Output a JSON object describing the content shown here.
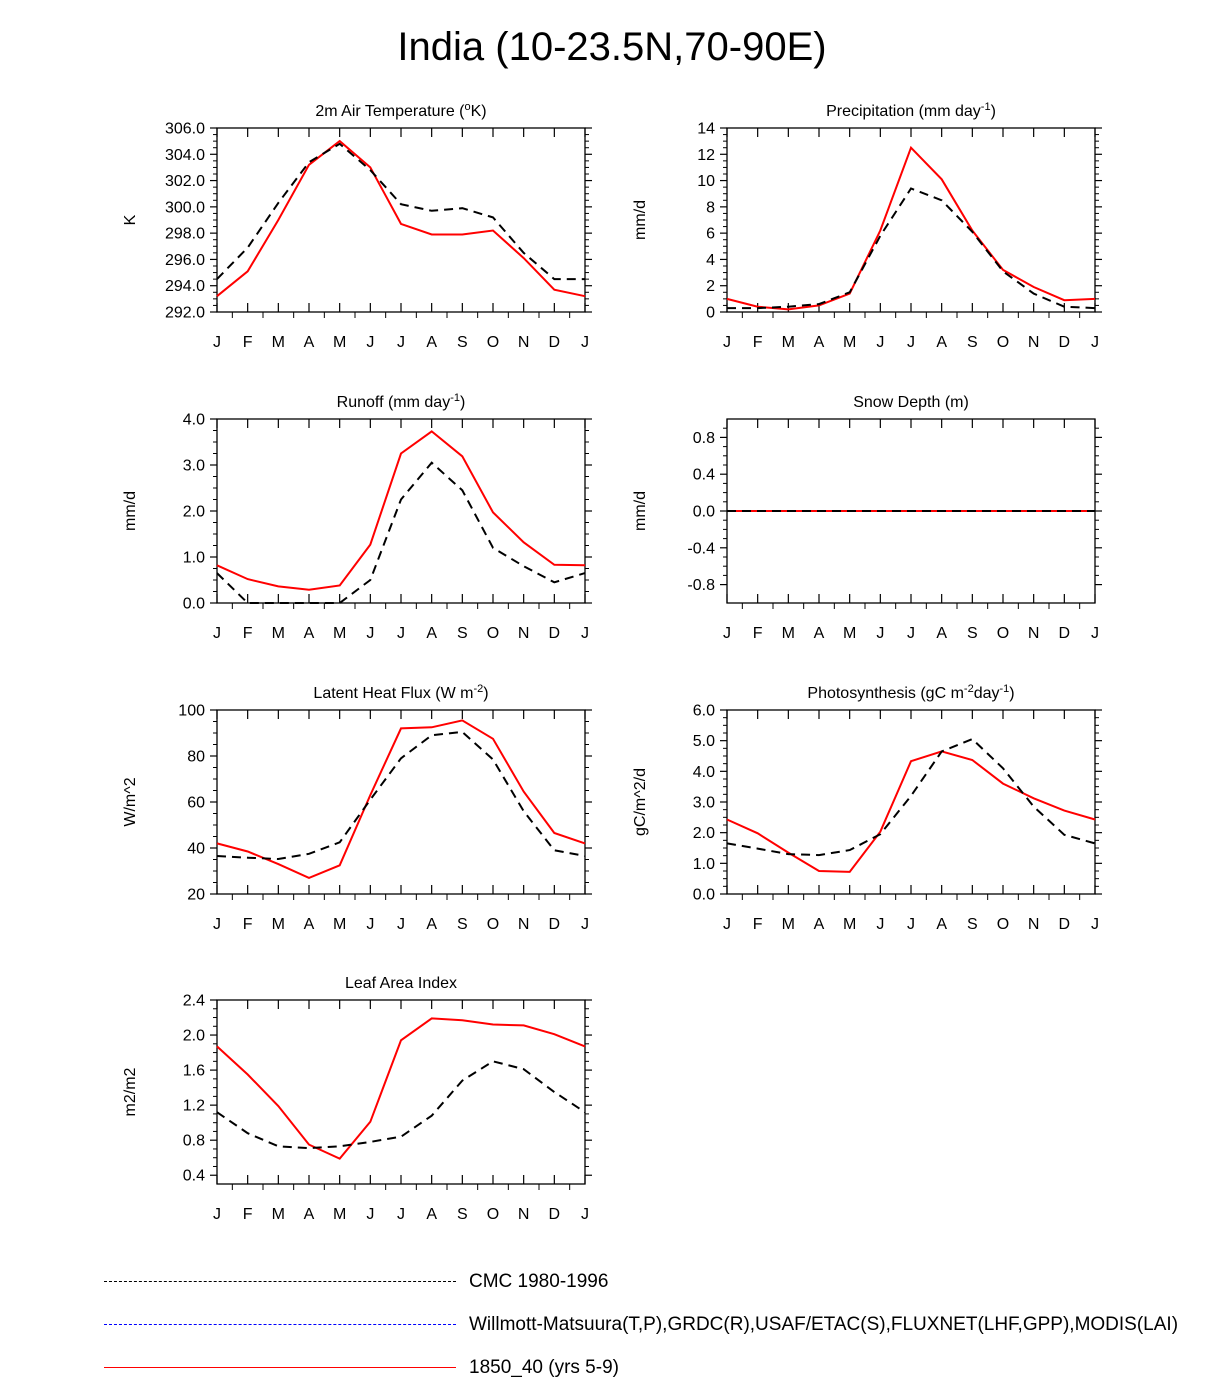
{
  "title": "India (10-23.5N,70-90E)",
  "legend": [
    {
      "label": "CMC 1980-1996",
      "color": "#000000",
      "style": "dashed"
    },
    {
      "label": "Willmott-Matsuura(T,P),GRDC(R),USAF/ETAC(S),FLUXNET(LHF,GPP),MODIS(LAI)",
      "color": "#0000ff",
      "style": "dashed"
    },
    {
      "label": "1850_40 (yrs 5-9)",
      "color": "#ff0000",
      "style": "solid"
    }
  ],
  "chart_data": [
    {
      "type": "line",
      "title": "2m Air Temperature (",
      "title_sup": "o",
      "title_tail": "K)",
      "ylabel": "K",
      "categories": [
        "J",
        "F",
        "M",
        "A",
        "M",
        "J",
        "J",
        "A",
        "S",
        "O",
        "N",
        "D",
        "J"
      ],
      "ylim": [
        292.0,
        306.0
      ],
      "yticks": [
        292.0,
        294.0,
        296.0,
        298.0,
        300.0,
        302.0,
        304.0,
        306.0
      ],
      "ytick_labels": [
        "292.0",
        "294.0",
        "296.0",
        "298.0",
        "300.0",
        "302.0",
        "304.0",
        "306.0"
      ],
      "series": [
        {
          "name": "CMC 1980-1996",
          "color": "#000000",
          "dashed": true,
          "values": [
            294.5,
            296.9,
            300.3,
            303.4,
            304.8,
            302.8,
            300.2,
            299.7,
            299.9,
            299.2,
            296.5,
            294.5,
            294.5
          ]
        },
        {
          "name": "1850_40 (yrs 5-9)",
          "color": "#ff0000",
          "dashed": false,
          "values": [
            293.2,
            295.1,
            299.0,
            303.2,
            305.0,
            303.0,
            298.7,
            297.9,
            297.9,
            298.2,
            296.1,
            293.7,
            293.2
          ]
        }
      ]
    },
    {
      "type": "line",
      "title": "Precipitation (mm day",
      "title_sup": "-1",
      "title_tail": ")",
      "ylabel": "mm/d",
      "categories": [
        "J",
        "F",
        "M",
        "A",
        "M",
        "J",
        "J",
        "A",
        "S",
        "O",
        "N",
        "D",
        "J"
      ],
      "ylim": [
        0,
        14
      ],
      "yticks": [
        0,
        2,
        4,
        6,
        8,
        10,
        12,
        14
      ],
      "ytick_labels": [
        "0",
        "2",
        "4",
        "6",
        "8",
        "10",
        "12",
        "14"
      ],
      "series": [
        {
          "name": "CMC 1980-1996",
          "color": "#000000",
          "dashed": true,
          "values": [
            0.3,
            0.3,
            0.4,
            0.6,
            1.5,
            5.8,
            9.4,
            8.5,
            6.1,
            3.1,
            1.4,
            0.4,
            0.3
          ]
        },
        {
          "name": "1850_40 (yrs 5-9)",
          "color": "#ff0000",
          "dashed": false,
          "values": [
            1.0,
            0.4,
            0.2,
            0.5,
            1.4,
            6.2,
            12.5,
            10.1,
            6.2,
            3.2,
            1.9,
            0.9,
            1.0
          ]
        }
      ]
    },
    {
      "type": "line",
      "title": "Runoff (mm day",
      "title_sup": "-1",
      "title_tail": ")",
      "ylabel": "mm/d",
      "categories": [
        "J",
        "F",
        "M",
        "A",
        "M",
        "J",
        "J",
        "A",
        "S",
        "O",
        "N",
        "D",
        "J"
      ],
      "ylim": [
        0,
        4
      ],
      "yticks": [
        0,
        1,
        2,
        3,
        4
      ],
      "ytick_labels": [
        "0.0",
        "1.0",
        "2.0",
        "3.0",
        "4.0"
      ],
      "series": [
        {
          "name": "CMC 1980-1996",
          "color": "#000000",
          "dashed": true,
          "values": [
            0.65,
            0.0,
            0.0,
            0.0,
            0.0,
            0.5,
            2.25,
            3.05,
            2.45,
            1.2,
            0.8,
            0.45,
            0.65
          ]
        },
        {
          "name": "1850_40 (yrs 5-9)",
          "color": "#ff0000",
          "dashed": false,
          "values": [
            0.82,
            0.52,
            0.36,
            0.29,
            0.38,
            1.27,
            3.25,
            3.73,
            3.19,
            1.97,
            1.32,
            0.83,
            0.82
          ]
        }
      ]
    },
    {
      "type": "line",
      "title": "Snow Depth (m)",
      "title_sup": "",
      "title_tail": "",
      "ylabel": "mm/d",
      "categories": [
        "J",
        "F",
        "M",
        "A",
        "M",
        "J",
        "J",
        "A",
        "S",
        "O",
        "N",
        "D",
        "J"
      ],
      "ylim": [
        -1.0,
        1.0
      ],
      "yticks": [
        -0.8,
        -0.4,
        0.0,
        0.4,
        0.8
      ],
      "ytick_labels": [
        "-0.8",
        "-0.4",
        "0.0",
        "0.4",
        "0.8"
      ],
      "series": [
        {
          "name": "CMC 1980-1996",
          "color": "#000000",
          "dashed": true,
          "values": [
            0,
            0,
            0,
            0,
            0,
            0,
            0,
            0,
            0,
            0,
            0,
            0,
            0
          ]
        },
        {
          "name": "1850_40 (yrs 5-9)",
          "color": "#ff0000",
          "dashed": false,
          "values": [
            0,
            0,
            0,
            0,
            0,
            0,
            0,
            0,
            0,
            0,
            0,
            0,
            0
          ]
        }
      ]
    },
    {
      "type": "line",
      "title": "Latent Heat Flux (W m",
      "title_sup": "-2",
      "title_tail": ")",
      "ylabel": "W/m^2",
      "categories": [
        "J",
        "F",
        "M",
        "A",
        "M",
        "J",
        "J",
        "A",
        "S",
        "O",
        "N",
        "D",
        "J"
      ],
      "ylim": [
        20,
        100
      ],
      "yticks": [
        20,
        40,
        60,
        80,
        100
      ],
      "ytick_labels": [
        "20",
        "40",
        "60",
        "80",
        "100"
      ],
      "series": [
        {
          "name": "CMC 1980-1996",
          "color": "#000000",
          "dashed": true,
          "values": [
            36.5,
            35.8,
            35.2,
            37.5,
            42.5,
            61.0,
            79.0,
            89.0,
            90.5,
            78.5,
            56.0,
            39.0,
            36.5
          ]
        },
        {
          "name": "1850_40 (yrs 5-9)",
          "color": "#ff0000",
          "dashed": false,
          "values": [
            42.0,
            38.5,
            33.0,
            27.0,
            32.5,
            63.0,
            92.0,
            92.5,
            95.5,
            87.5,
            64.5,
            46.5,
            42.0
          ]
        }
      ]
    },
    {
      "type": "line",
      "title": "Photosynthesis (gC m",
      "title_sup": "-2",
      "title_tail2": "day",
      "title_sup2": "-1",
      "title_tail": ")",
      "ylabel": "gC/m^2/d",
      "categories": [
        "J",
        "F",
        "M",
        "A",
        "M",
        "J",
        "J",
        "A",
        "S",
        "O",
        "N",
        "D",
        "J"
      ],
      "ylim": [
        0,
        6
      ],
      "yticks": [
        0,
        1,
        2,
        3,
        4,
        5,
        6
      ],
      "ytick_labels": [
        "0.0",
        "1.0",
        "2.0",
        "3.0",
        "4.0",
        "5.0",
        "6.0"
      ],
      "series": [
        {
          "name": "CMC 1980-1996",
          "color": "#000000",
          "dashed": true,
          "values": [
            1.65,
            1.48,
            1.3,
            1.27,
            1.43,
            1.95,
            3.2,
            4.65,
            5.05,
            4.1,
            2.85,
            1.93,
            1.65
          ]
        },
        {
          "name": "1850_40 (yrs 5-9)",
          "color": "#ff0000",
          "dashed": false,
          "values": [
            2.43,
            1.98,
            1.35,
            0.75,
            0.72,
            2.03,
            4.33,
            4.65,
            4.37,
            3.6,
            3.12,
            2.72,
            2.43
          ]
        }
      ]
    },
    {
      "type": "line",
      "title": "Leaf Area Index",
      "title_sup": "",
      "title_tail": "",
      "ylabel": "m2/m2",
      "categories": [
        "J",
        "F",
        "M",
        "A",
        "M",
        "J",
        "J",
        "A",
        "S",
        "O",
        "N",
        "D",
        "J"
      ],
      "ylim": [
        0.3,
        2.4
      ],
      "yticks": [
        0.4,
        0.8,
        1.2,
        1.6,
        2.0,
        2.4
      ],
      "ytick_labels": [
        "0.4",
        "0.8",
        "1.2",
        "1.6",
        "2.0",
        "2.4"
      ],
      "series": [
        {
          "name": "CMC 1980-1996",
          "color": "#000000",
          "dashed": true,
          "values": [
            1.12,
            0.88,
            0.73,
            0.71,
            0.73,
            0.78,
            0.84,
            1.08,
            1.48,
            1.7,
            1.61,
            1.35,
            1.12
          ]
        },
        {
          "name": "1850_40 (yrs 5-9)",
          "color": "#ff0000",
          "dashed": false,
          "values": [
            1.87,
            1.55,
            1.19,
            0.75,
            0.59,
            1.01,
            1.94,
            2.19,
            2.17,
            2.12,
            2.11,
            2.01,
            1.87
          ]
        }
      ]
    }
  ]
}
